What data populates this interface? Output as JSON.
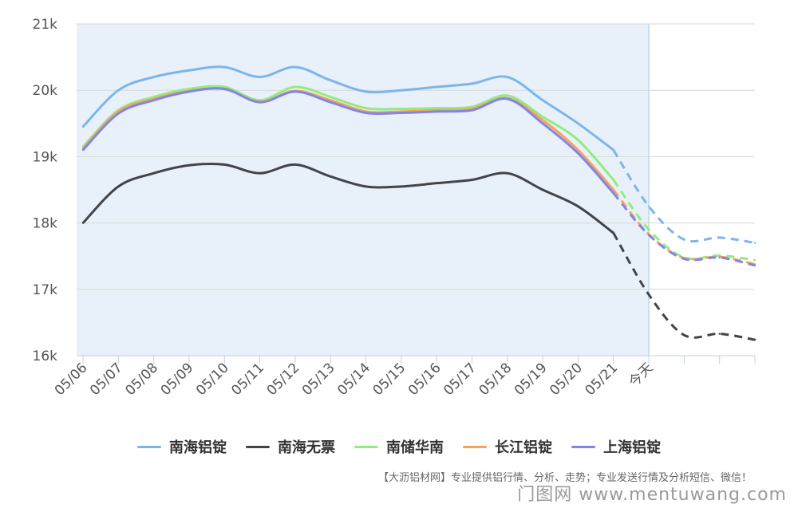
{
  "chart_data": {
    "type": "line",
    "title": "",
    "xlabel": "",
    "ylabel": "",
    "ylim": [
      16000,
      21000
    ],
    "yticks": [
      16000,
      17000,
      18000,
      19000,
      20000,
      21000
    ],
    "ytick_labels": [
      "16k",
      "17k",
      "18k",
      "19k",
      "20k",
      "21k"
    ],
    "categories": [
      "05/06",
      "05/07",
      "05/08",
      "05/09",
      "05/10",
      "05/11",
      "05/12",
      "05/13",
      "05/14",
      "05/15",
      "05/16",
      "05/17",
      "05/18",
      "05/19",
      "05/20",
      "05/21",
      "今天",
      "",
      "",
      ""
    ],
    "forecast_start_index": 15,
    "grid": true,
    "series": [
      {
        "name": "南海铝锭",
        "color": "#7cb5ec",
        "values": [
          19450,
          20000,
          20200,
          20300,
          20350,
          20200,
          20350,
          20150,
          19980,
          20000,
          20050,
          20100,
          20200,
          19850,
          19500,
          19100,
          18250,
          17750,
          17780,
          17700
        ]
      },
      {
        "name": "南海无票",
        "color": "#434348",
        "values": [
          18000,
          18550,
          18750,
          18870,
          18880,
          18750,
          18880,
          18700,
          18550,
          18550,
          18600,
          18650,
          18750,
          18500,
          18250,
          17850,
          16920,
          16310,
          16330,
          16240
        ]
      },
      {
        "name": "南储华南",
        "color": "#90ed7d",
        "values": [
          19150,
          19700,
          19900,
          20020,
          20050,
          19850,
          20050,
          19900,
          19730,
          19720,
          19730,
          19750,
          19920,
          19600,
          19250,
          18650,
          17900,
          17480,
          17510,
          17440
        ]
      },
      {
        "name": "长江铝锭",
        "color": "#f7a35c",
        "values": [
          19120,
          19680,
          19870,
          19990,
          20020,
          19830,
          19990,
          19850,
          19680,
          19680,
          19700,
          19720,
          19880,
          19550,
          19100,
          18500,
          17830,
          17470,
          17490,
          17380
        ]
      },
      {
        "name": "上海铝锭",
        "color": "#8085e9",
        "values": [
          19100,
          19650,
          19850,
          19980,
          20020,
          19820,
          19980,
          19820,
          19660,
          19660,
          19680,
          19700,
          19870,
          19500,
          19050,
          18450,
          17820,
          17460,
          17480,
          17360
        ]
      }
    ]
  },
  "footer": {
    "note": "【大沥铝材网】专业提供铝行情、分析、走势；专业发送行情及分析短信、微信！",
    "watermark": "门图网 www.mentuwang.com"
  }
}
